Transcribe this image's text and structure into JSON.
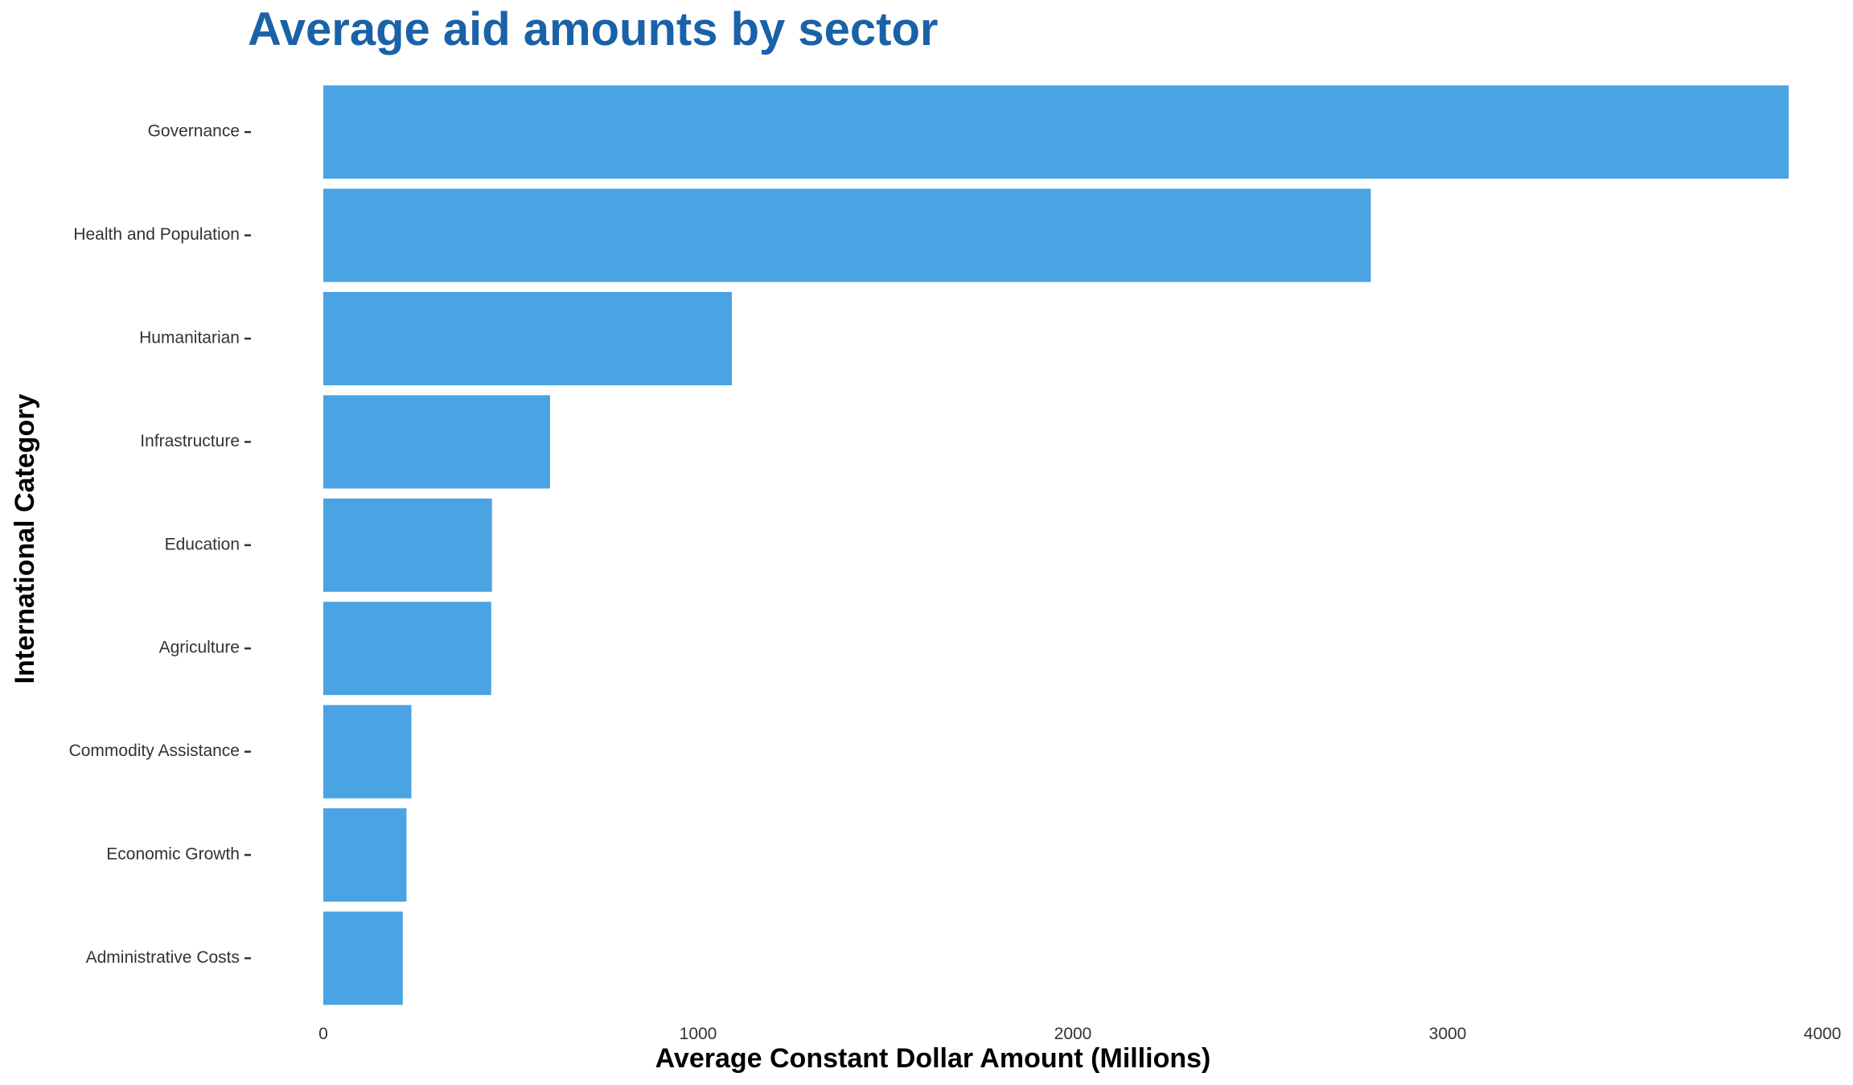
{
  "chart_data": {
    "type": "bar",
    "orientation": "horizontal",
    "title": "Average aid amounts by sector",
    "xlabel": "Average Constant Dollar Amount (Millions)",
    "ylabel": "International Category",
    "categories": [
      "Governance",
      "Health and Population",
      "Humanitarian",
      "Infrastructure",
      "Education",
      "Agriculture",
      "Commodity Assistance",
      "Economic Growth",
      "Administrative Costs"
    ],
    "values": [
      3910,
      2795,
      1090,
      605,
      450,
      448,
      235,
      222,
      212
    ],
    "xlim": [
      0,
      4000
    ],
    "xticks": [
      0,
      1000,
      2000,
      3000,
      4000
    ],
    "grid": false,
    "legend": "none",
    "colors": {
      "bar": "#4AA3E2",
      "title": "#1A62A8",
      "axis_text": "#333333",
      "axis_title": "#000000",
      "tick": "#333333"
    }
  }
}
